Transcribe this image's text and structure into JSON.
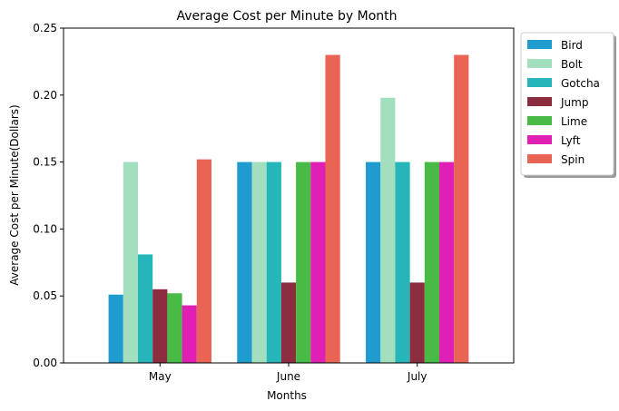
{
  "chart_data": {
    "type": "bar",
    "title": "Average Cost per Minute by Month",
    "xlabel": "Months",
    "ylabel": "Average Cost per Minute(Dollars)",
    "categories": [
      "May",
      "June",
      "July"
    ],
    "ylim": [
      0,
      0.25
    ],
    "yticks": [
      "0.00",
      "0.05",
      "0.10",
      "0.15",
      "0.20",
      "0.25"
    ],
    "grid": false,
    "legend_position": "outside-top-right",
    "series": [
      {
        "name": "Bird",
        "color": "#1f9bcf",
        "values": [
          0.051,
          0.15,
          0.15
        ]
      },
      {
        "name": "Bolt",
        "color": "#a1dfbf",
        "values": [
          0.15,
          0.15,
          0.198
        ]
      },
      {
        "name": "Gotcha",
        "color": "#26b5b8",
        "values": [
          0.081,
          0.15,
          0.15
        ]
      },
      {
        "name": "Jump",
        "color": "#8b2c3f",
        "values": [
          0.055,
          0.06,
          0.06
        ]
      },
      {
        "name": "Lime",
        "color": "#47bb45",
        "values": [
          0.052,
          0.15,
          0.15
        ]
      },
      {
        "name": "Lyft",
        "color": "#e020b4",
        "values": [
          0.043,
          0.15,
          0.15
        ]
      },
      {
        "name": "Spin",
        "color": "#e96454",
        "values": [
          0.152,
          0.23,
          0.23
        ]
      }
    ]
  }
}
